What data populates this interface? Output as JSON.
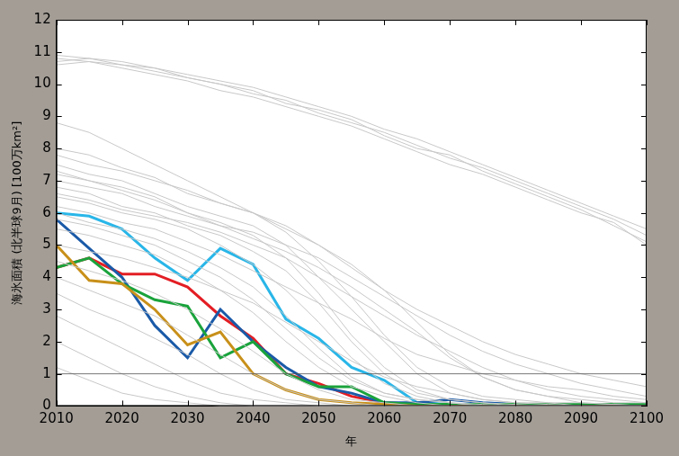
{
  "chart_data": {
    "type": "line",
    "y_label": "海氷面積 (北半球9月) [100万km²]",
    "x_label": "年",
    "x": [
      2010,
      2015,
      2020,
      2025,
      2030,
      2035,
      2040,
      2045,
      2050,
      2055,
      2060,
      2065,
      2070,
      2075,
      2080,
      2085,
      2090,
      2095,
      2100
    ],
    "xlim": [
      2010,
      2100
    ],
    "xticks": [
      2010,
      2020,
      2030,
      2040,
      2050,
      2060,
      2070,
      2080,
      2090,
      2100
    ],
    "ylim": [
      0,
      12
    ],
    "yticks": [
      0,
      1,
      2,
      3,
      4,
      5,
      6,
      7,
      8,
      9,
      10,
      11,
      12
    ],
    "grid": false,
    "reference_line": 1,
    "series": [
      {
        "color": "#c8c8c8",
        "values": [
          10.9,
          10.8,
          10.7,
          10.5,
          10.3,
          10.1,
          9.9,
          9.6,
          9.3,
          9.0,
          8.6,
          8.3,
          7.9,
          7.5,
          7.1,
          6.7,
          6.3,
          5.9,
          5.5
        ]
      },
      {
        "color": "#c8c8c8",
        "values": [
          10.8,
          10.7,
          10.6,
          10.4,
          10.2,
          10.0,
          9.7,
          9.5,
          9.1,
          8.8,
          8.5,
          8.1,
          7.7,
          7.4,
          7.0,
          6.6,
          6.2,
          5.8,
          5.3
        ]
      },
      {
        "color": "#c8c8c8",
        "values": [
          10.7,
          10.8,
          10.6,
          10.5,
          10.2,
          10.0,
          9.8,
          9.4,
          9.2,
          8.9,
          8.4,
          8.0,
          7.8,
          7.3,
          6.9,
          6.5,
          6.1,
          5.6,
          5.1
        ]
      },
      {
        "color": "#c8c8c8",
        "values": [
          10.6,
          10.7,
          10.5,
          10.3,
          10.1,
          9.8,
          9.6,
          9.3,
          9.0,
          8.7,
          8.3,
          7.9,
          7.5,
          7.2,
          6.8,
          6.4,
          6.0,
          5.7,
          5.0
        ]
      },
      {
        "color": "#c8c8c8",
        "values": [
          8.8,
          8.5,
          8.0,
          7.5,
          7.0,
          6.5,
          6.0,
          5.4,
          4.5,
          3.4,
          2.2,
          1.2,
          0.6,
          0.3,
          0.2,
          0.1,
          0.1,
          0.05,
          0
        ]
      },
      {
        "color": "#c8c8c8",
        "values": [
          8.0,
          7.8,
          7.4,
          7.1,
          6.6,
          6.3,
          6.0,
          5.5,
          5.0,
          4.4,
          3.6,
          2.6,
          1.6,
          0.9,
          0.5,
          0.3,
          0.2,
          0.1,
          0.1
        ]
      },
      {
        "color": "#c8c8c8",
        "values": [
          7.5,
          7.2,
          7.0,
          6.6,
          6.2,
          5.9,
          5.6,
          5.0,
          4.0,
          3.0,
          2.0,
          1.0,
          0.4,
          0.2,
          0.1,
          0.05,
          0,
          0,
          0
        ]
      },
      {
        "color": "#c8c8c8",
        "values": [
          7.3,
          7.0,
          6.8,
          6.5,
          6.0,
          5.7,
          5.3,
          4.6,
          3.5,
          2.2,
          1.2,
          0.5,
          0.2,
          0.1,
          0,
          0,
          0,
          0,
          0
        ]
      },
      {
        "color": "#c8c8c8",
        "values": [
          7.0,
          6.8,
          6.6,
          6.2,
          5.9,
          5.6,
          5.4,
          5.0,
          4.6,
          4.0,
          3.4,
          2.8,
          2.2,
          1.7,
          1.3,
          1.0,
          0.7,
          0.5,
          0.3
        ]
      },
      {
        "color": "#c8c8c8",
        "values": [
          6.8,
          6.6,
          6.2,
          6.0,
          5.6,
          5.3,
          4.8,
          4.2,
          3.2,
          2.0,
          1.0,
          0.4,
          0.2,
          0.1,
          0.05,
          0,
          0,
          0,
          0
        ]
      },
      {
        "color": "#c8c8c8",
        "values": [
          6.5,
          6.3,
          6.0,
          5.8,
          5.5,
          5.0,
          4.4,
          3.6,
          2.6,
          1.5,
          0.7,
          0.3,
          0.1,
          0.05,
          0,
          0,
          0,
          0,
          0
        ]
      },
      {
        "color": "#c8c8c8",
        "values": [
          6.2,
          6.0,
          5.7,
          5.5,
          5.1,
          4.7,
          4.2,
          3.7,
          3.2,
          2.7,
          2.1,
          1.6,
          1.3,
          1.0,
          0.8,
          0.6,
          0.5,
          0.3,
          0.2
        ]
      },
      {
        "color": "#c8c8c8",
        "values": [
          6.0,
          5.7,
          5.5,
          5.2,
          4.8,
          4.3,
          3.7,
          2.8,
          1.8,
          0.9,
          0.4,
          0.2,
          0.1,
          0,
          0,
          0,
          0,
          0,
          0
        ]
      },
      {
        "color": "#c8c8c8",
        "values": [
          5.5,
          5.3,
          5.0,
          4.7,
          4.2,
          3.6,
          2.9,
          2.0,
          1.2,
          0.6,
          0.3,
          0.1,
          0,
          0,
          0,
          0,
          0,
          0,
          0
        ]
      },
      {
        "color": "#c8c8c8",
        "values": [
          5.0,
          4.8,
          4.6,
          4.3,
          4.0,
          3.6,
          3.2,
          2.6,
          2.0,
          1.4,
          0.9,
          0.6,
          0.4,
          0.2,
          0.1,
          0.1,
          0,
          0,
          0
        ]
      },
      {
        "color": "#c8c8c8",
        "values": [
          4.5,
          4.2,
          3.9,
          3.5,
          3.0,
          2.4,
          1.7,
          1.0,
          0.5,
          0.2,
          0.1,
          0,
          0,
          0,
          0,
          0,
          0,
          0,
          0
        ]
      },
      {
        "color": "#c8c8c8",
        "values": [
          4.0,
          3.6,
          3.2,
          2.8,
          2.2,
          1.6,
          1.0,
          0.5,
          0.2,
          0.1,
          0,
          0,
          0,
          0,
          0,
          0,
          0,
          0,
          0
        ]
      },
      {
        "color": "#c8c8c8",
        "values": [
          3.5,
          3.0,
          2.6,
          2.1,
          1.6,
          1.0,
          0.5,
          0.2,
          0.1,
          0,
          0,
          0,
          0,
          0,
          0,
          0,
          0,
          0,
          0
        ]
      },
      {
        "color": "#c8c8c8",
        "values": [
          2.8,
          2.3,
          1.8,
          1.3,
          0.8,
          0.4,
          0.2,
          0.1,
          0,
          0,
          0,
          0,
          0,
          0,
          0,
          0,
          0,
          0,
          0
        ]
      },
      {
        "color": "#c8c8c8",
        "values": [
          2.0,
          1.5,
          1.0,
          0.6,
          0.3,
          0.1,
          0,
          0,
          0,
          0,
          0,
          0,
          0,
          0,
          0,
          0,
          0,
          0,
          0
        ]
      },
      {
        "color": "#c8c8c8",
        "values": [
          1.2,
          0.8,
          0.4,
          0.2,
          0.1,
          0,
          0,
          0,
          0,
          0,
          0,
          0,
          0,
          0,
          0,
          0,
          0,
          0,
          0
        ]
      },
      {
        "color": "#c8c8c8",
        "values": [
          7.8,
          7.5,
          7.3,
          7.0,
          6.7,
          6.3,
          6.0,
          5.6,
          5.0,
          4.3,
          3.6,
          3.0,
          2.5,
          2.0,
          1.6,
          1.3,
          1.0,
          0.8,
          0.6
        ]
      },
      {
        "color": "#c8c8c8",
        "values": [
          6.6,
          6.4,
          6.1,
          5.9,
          5.7,
          5.4,
          5.0,
          4.6,
          4.0,
          3.4,
          2.8,
          2.2,
          1.7,
          1.2,
          0.8,
          0.5,
          0.3,
          0.2,
          0.1
        ]
      },
      {
        "color": "#c8c8c8",
        "values": [
          5.8,
          5.6,
          5.3,
          5.0,
          4.5,
          4.0,
          3.3,
          2.4,
          1.5,
          0.8,
          0.4,
          0.2,
          0.1,
          0,
          0,
          0,
          0,
          0,
          0
        ]
      },
      {
        "color": "#c8c8c8",
        "values": [
          7.2,
          7.0,
          6.7,
          6.4,
          6.0,
          5.6,
          5.2,
          4.8,
          4.3,
          3.7,
          3.0,
          2.3,
          1.5,
          0.9,
          0.5,
          0.3,
          0.1,
          0.05,
          0
        ]
      },
      {
        "color": "#c8901a",
        "values": [
          5.0,
          3.9,
          3.8,
          3.0,
          1.9,
          2.3,
          1.0,
          0.5,
          0.2,
          0.1,
          0.05,
          0,
          0,
          0,
          0,
          0,
          0,
          0,
          0
        ]
      },
      {
        "color": "#1aa33c",
        "values": [
          4.3,
          4.6,
          3.8,
          3.3,
          3.1,
          1.5,
          2.0,
          1.0,
          0.6,
          0.6,
          0.1,
          0.05,
          0.05,
          0.05,
          0.05,
          0.05,
          0.05,
          0.05,
          0.05
        ]
      },
      {
        "color": "#1a5aa8",
        "values": [
          5.8,
          4.9,
          4.0,
          2.5,
          1.5,
          3.0,
          2.0,
          1.2,
          0.6,
          0.4,
          0.1,
          0.1,
          0.2,
          0.1,
          0.05,
          0,
          0,
          0,
          0
        ]
      },
      {
        "color": "#e31e24",
        "values": [
          4.3,
          4.6,
          4.1,
          4.1,
          3.7,
          2.8,
          2.1,
          1.0,
          0.7,
          0.3,
          0.1,
          0.05,
          0.05,
          0.02,
          0,
          0,
          0,
          0,
          0
        ]
      },
      {
        "color": "#29b6e8",
        "values": [
          6.0,
          5.9,
          5.5,
          4.6,
          3.9,
          4.9,
          4.4,
          2.7,
          2.1,
          1.2,
          0.8,
          0.1,
          0.05,
          0,
          0,
          0,
          0,
          0,
          0
        ]
      }
    ]
  }
}
